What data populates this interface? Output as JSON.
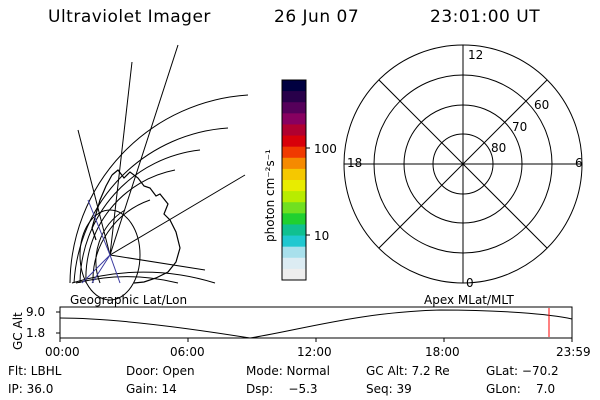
{
  "header": {
    "instrument": "Ultraviolet Imager",
    "date": "26 Jun 07",
    "time": "23:01:00 UT"
  },
  "colorbar": {
    "label": "photon cm⁻²s⁻¹",
    "ticks": [
      "100",
      "10"
    ],
    "colors": [
      "#000040",
      "#28004a",
      "#55005a",
      "#880060",
      "#b00030",
      "#d8000a",
      "#f03a00",
      "#f58a00",
      "#f5c800",
      "#e8ec00",
      "#b8ec00",
      "#70e020",
      "#20d030",
      "#10c090",
      "#20c8d0",
      "#a8e0ec",
      "#dcecf3",
      "#eeeeee"
    ]
  },
  "polar": {
    "mlt_labels": {
      "top": "12",
      "left": "18",
      "right": "6",
      "bottom": "0"
    },
    "lat_labels": [
      "60",
      "70",
      "80"
    ]
  },
  "footer": {
    "left_title": "Geographic Lat/Lon",
    "right_title": "Apex MLat/MLT",
    "y_axis_label": "GC Alt",
    "y_ticks": [
      "9.0",
      "1.8"
    ],
    "x_ticks": [
      "00:00",
      "06:00",
      "12:00",
      "18:00",
      "23:59"
    ]
  },
  "status": [
    [
      {
        "text": "Flt: LBHL"
      },
      {
        "text": "Door: Open"
      },
      {
        "text": "Mode: Normal"
      },
      {
        "text": "GC Alt: 7.2 Re"
      },
      {
        "text": "GLat: −70.2"
      }
    ],
    [
      {
        "text": "IP: 36.0"
      },
      {
        "text": "Gain: 14"
      },
      {
        "text": "Dsp:    −5.3"
      },
      {
        "text": "Seq: 39"
      },
      {
        "text": "GLon:    7.0"
      }
    ]
  ]
}
